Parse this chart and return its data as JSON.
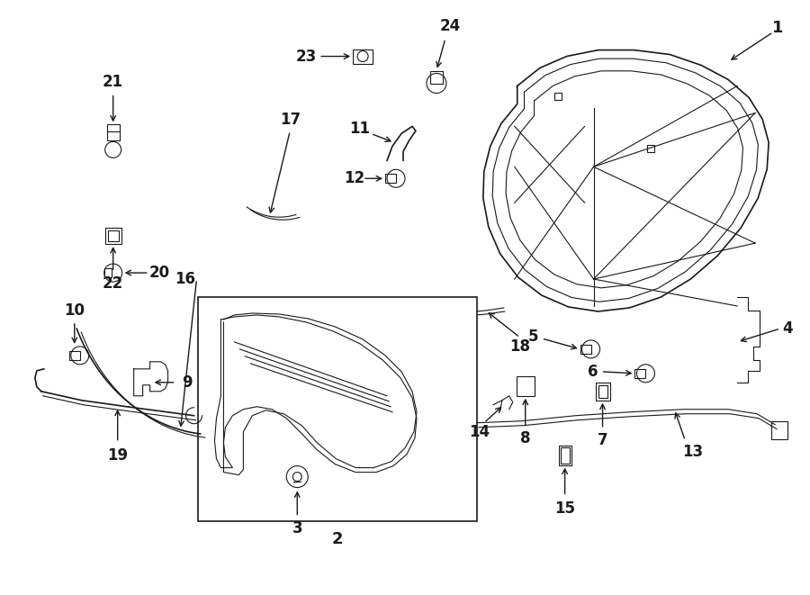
{
  "background_color": "#ffffff",
  "line_color": "#1a1a1a",
  "fig_width": 9.0,
  "fig_height": 6.61,
  "dpi": 100
}
